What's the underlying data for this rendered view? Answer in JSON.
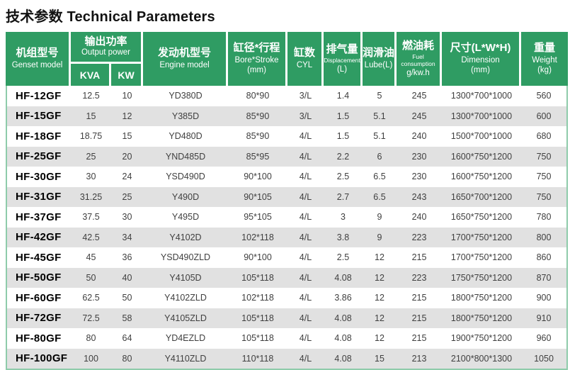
{
  "page_title": "技术参数 Technical Parameters",
  "colors": {
    "header_green": "#2f9c63",
    "row_stripe_gray": "#e1e1e1",
    "table_border_green": "#8ecbaa"
  },
  "table": {
    "header": {
      "genset": {
        "zh": "机组型号",
        "en": "Genset model"
      },
      "output": {
        "zh": "输出功率",
        "en": "Output power",
        "sub": [
          "KVA",
          "KW"
        ]
      },
      "engine": {
        "zh": "发动机型号",
        "en": "Engine model"
      },
      "bore": {
        "zh": "缸径*行程",
        "en": "Bore*Stroke",
        "unit": "(mm)"
      },
      "cyl": {
        "zh": "缸数",
        "en": "CYL"
      },
      "displacement": {
        "zh": "排气量",
        "en": "Displacement",
        "unit": "(L)"
      },
      "lube": {
        "zh": "润滑油",
        "en": "Lube(L)"
      },
      "fuel": {
        "zh": "燃油耗",
        "en": "Fuel consumption",
        "unit": "g/kw.h"
      },
      "dimension": {
        "zh": "尺寸(L*W*H)",
        "en": "Dimension",
        "unit": "(mm)"
      },
      "weight": {
        "zh": "重量",
        "en": "Weight",
        "unit": "(kg)"
      }
    },
    "rows": [
      [
        "HF-12GF",
        "12.5",
        "10",
        "YD380D",
        "80*90",
        "3/L",
        "1.4",
        "5",
        "245",
        "1300*700*1000",
        "560"
      ],
      [
        "HF-15GF",
        "15",
        "12",
        "Y385D",
        "85*90",
        "3/L",
        "1.5",
        "5.1",
        "245",
        "1300*700*1000",
        "600"
      ],
      [
        "HF-18GF",
        "18.75",
        "15",
        "YD480D",
        "85*90",
        "4/L",
        "1.5",
        "5.1",
        "240",
        "1500*700*1000",
        "680"
      ],
      [
        "HF-25GF",
        "25",
        "20",
        "YND485D",
        "85*95",
        "4/L",
        "2.2",
        "6",
        "230",
        "1600*750*1200",
        "750"
      ],
      [
        "HF-30GF",
        "30",
        "24",
        "YSD490D",
        "90*100",
        "4/L",
        "2.5",
        "6.5",
        "230",
        "1600*750*1200",
        "750"
      ],
      [
        "HF-31GF",
        "31.25",
        "25",
        "Y490D",
        "90*105",
        "4/L",
        "2.7",
        "6.5",
        "243",
        "1650*700*1200",
        "750"
      ],
      [
        "HF-37GF",
        "37.5",
        "30",
        "Y495D",
        "95*105",
        "4/L",
        "3",
        "9",
        "240",
        "1650*750*1200",
        "780"
      ],
      [
        "HF-42GF",
        "42.5",
        "34",
        "Y4102D",
        "102*118",
        "4/L",
        "3.8",
        "9",
        "223",
        "1700*750*1200",
        "800"
      ],
      [
        "HF-45GF",
        "45",
        "36",
        "YSD490ZLD",
        "90*100",
        "4/L",
        "2.5",
        "12",
        "215",
        "1700*750*1200",
        "860"
      ],
      [
        "HF-50GF",
        "50",
        "40",
        "Y4105D",
        "105*118",
        "4/L",
        "4.08",
        "12",
        "223",
        "1750*750*1200",
        "870"
      ],
      [
        "HF-60GF",
        "62.5",
        "50",
        "Y4102ZLD",
        "102*118",
        "4/L",
        "3.86",
        "12",
        "215",
        "1800*750*1200",
        "900"
      ],
      [
        "HF-72GF",
        "72.5",
        "58",
        "Y4105ZLD",
        "105*118",
        "4/L",
        "4.08",
        "12",
        "215",
        "1800*750*1200",
        "910"
      ],
      [
        "HF-80GF",
        "80",
        "64",
        "YD4EZLD",
        "105*118",
        "4/L",
        "4.08",
        "12",
        "215",
        "1900*750*1200",
        "960"
      ],
      [
        "HF-100GF",
        "100",
        "80",
        "Y4110ZLD",
        "110*118",
        "4/L",
        "4.08",
        "15",
        "213",
        "2100*800*1300",
        "1050"
      ]
    ]
  }
}
